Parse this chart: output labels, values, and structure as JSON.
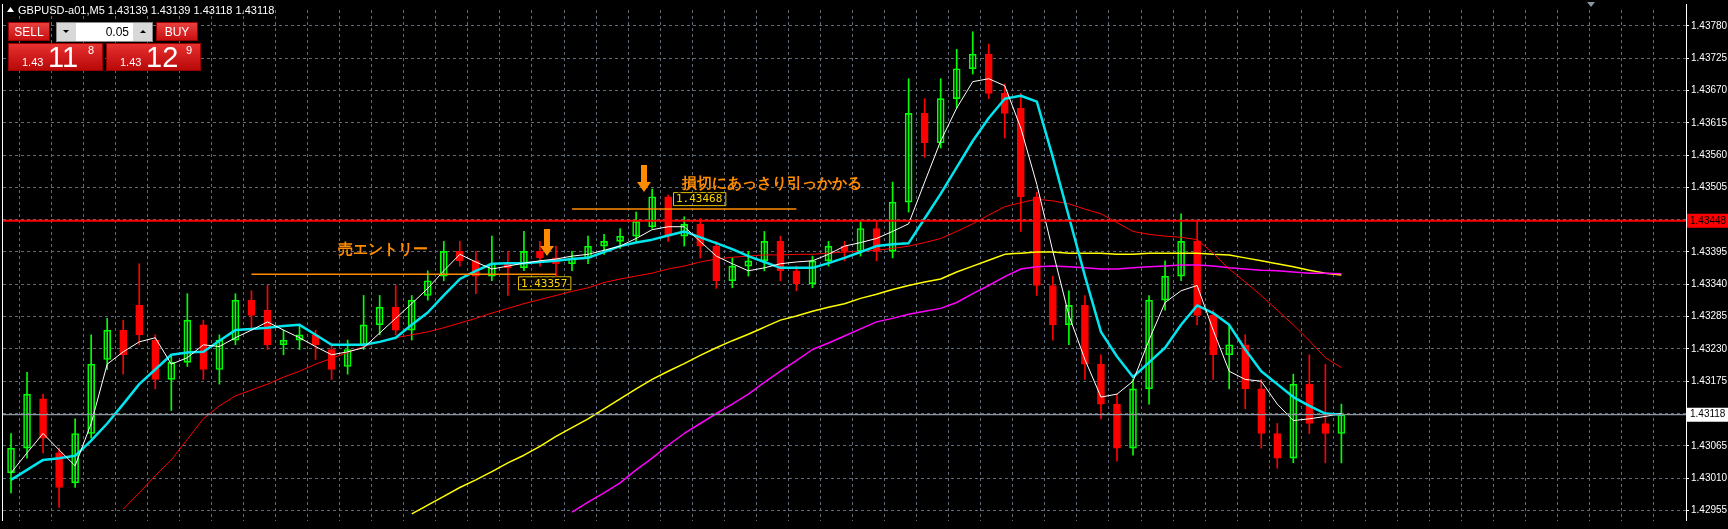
{
  "chart_data": {
    "type": "candlestick",
    "title": "GBPUSD-a01,M5 1.43139 1.43139 1.43118 1.43118",
    "categories": [
      null,
      null,
      null,
      null,
      null,
      null,
      null,
      null,
      null,
      null,
      null,
      null,
      null,
      null,
      null,
      null,
      null,
      null,
      null,
      null,
      null,
      null,
      null,
      null,
      null,
      null,
      null,
      null,
      null,
      null,
      null,
      null,
      null,
      null,
      null,
      null,
      null,
      null,
      null,
      null,
      null,
      null,
      null,
      null,
      null,
      null,
      null,
      null,
      null,
      null,
      null,
      null,
      null,
      null,
      null,
      null,
      null,
      null,
      null,
      null,
      null,
      null,
      null,
      null,
      null,
      null,
      null,
      null,
      null,
      null,
      null,
      null,
      null,
      null,
      null,
      null,
      null,
      null,
      null,
      null,
      null,
      null,
      null,
      null,
      null,
      null,
      null,
      null,
      null,
      null,
      null,
      null,
      null,
      null,
      null,
      null,
      null,
      null,
      null,
      null,
      null,
      null,
      null,
      null,
      null
    ],
    "ohlc": [
      [
        1.43019,
        1.43086,
        1.42985,
        1.43061
      ],
      [
        1.43061,
        1.4319,
        1.43044,
        1.43153
      ],
      [
        1.43145,
        1.43153,
        1.43053,
        1.43078
      ],
      [
        1.43053,
        1.43061,
        1.4296,
        1.42994
      ],
      [
        1.43002,
        1.43111,
        1.42994,
        1.43086
      ],
      [
        1.43086,
        1.43254,
        1.43078,
        1.43204
      ],
      [
        1.43212,
        1.43282,
        1.43195,
        1.43262
      ],
      [
        1.43262,
        1.43279,
        1.43187,
        1.4322
      ],
      [
        1.43304,
        1.43375,
        1.43237,
        1.43254
      ],
      [
        1.43245,
        1.43254,
        1.43162,
        1.43178
      ],
      [
        1.43178,
        1.4322,
        1.43125,
        1.43207
      ],
      [
        1.43207,
        1.43324,
        1.432,
        1.43279
      ],
      [
        1.43271,
        1.43279,
        1.43178,
        1.43195
      ],
      [
        1.43195,
        1.43254,
        1.4317,
        1.43245
      ],
      [
        1.43245,
        1.43324,
        1.43237,
        1.43313
      ],
      [
        1.43313,
        1.43329,
        1.43262,
        1.43287
      ],
      [
        1.43296,
        1.43338,
        1.43229,
        1.43237
      ],
      [
        1.43237,
        1.43262,
        1.4322,
        1.43245
      ],
      [
        1.43245,
        1.43271,
        1.43229,
        1.43254
      ],
      [
        1.43254,
        1.43262,
        1.43212,
        1.43237
      ],
      [
        1.43229,
        1.43237,
        1.43178,
        1.43195
      ],
      [
        1.432,
        1.43245,
        1.43187,
        1.43229
      ],
      [
        1.43237,
        1.43321,
        1.43229,
        1.43271
      ],
      [
        1.43271,
        1.43321,
        1.43254,
        1.43301
      ],
      [
        1.43301,
        1.43338,
        1.43254,
        1.43262
      ],
      [
        1.43262,
        1.43321,
        1.43245,
        1.43313
      ],
      [
        1.43321,
        1.43363,
        1.43313,
        1.43346
      ],
      [
        1.43354,
        1.43413,
        1.43346,
        1.43396
      ],
      [
        1.43396,
        1.43413,
        1.43371,
        1.4338
      ],
      [
        1.4338,
        1.43396,
        1.43324,
        1.43354
      ],
      [
        1.43354,
        1.43422,
        1.43346,
        1.43375
      ],
      [
        1.43375,
        1.43396,
        1.43321,
        1.43368
      ],
      [
        1.43368,
        1.4343,
        1.43363,
        1.43396
      ],
      [
        1.43396,
        1.43413,
        1.43371,
        1.43385
      ],
      [
        1.43385,
        1.43405,
        1.43354,
        1.43375
      ],
      [
        1.43375,
        1.43396,
        1.43363,
        1.43385
      ],
      [
        1.43385,
        1.43422,
        1.43375,
        1.43405
      ],
      [
        1.43405,
        1.43425,
        1.43391,
        1.43413
      ],
      [
        1.43413,
        1.43435,
        1.43401,
        1.43422
      ],
      [
        1.43422,
        1.43463,
        1.43413,
        1.43447
      ],
      [
        1.43438,
        1.43502,
        1.43435,
        1.43489
      ],
      [
        1.43489,
        1.43492,
        1.43413,
        1.43422
      ],
      [
        1.43422,
        1.43455,
        1.43405,
        1.43442
      ],
      [
        1.43442,
        1.43452,
        1.43385,
        1.43405
      ],
      [
        1.43405,
        1.43413,
        1.43333,
        1.43346
      ],
      [
        1.43346,
        1.43385,
        1.43334,
        1.43371
      ],
      [
        1.43371,
        1.43396,
        1.43354,
        1.4338
      ],
      [
        1.4338,
        1.4343,
        1.43363,
        1.43413
      ],
      [
        1.43413,
        1.43422,
        1.43346,
        1.43363
      ],
      [
        1.43363,
        1.43371,
        1.43329,
        1.43341
      ],
      [
        1.43341,
        1.43388,
        1.43334,
        1.4338
      ],
      [
        1.4338,
        1.43413,
        1.43371,
        1.43405
      ],
      [
        1.43405,
        1.43413,
        1.4338,
        1.43396
      ],
      [
        1.43396,
        1.43447,
        1.43388,
        1.43435
      ],
      [
        1.43435,
        1.43447,
        1.4338,
        1.43396
      ],
      [
        1.43396,
        1.43514,
        1.43385,
        1.4348
      ],
      [
        1.4348,
        1.4369,
        1.43463,
        1.43631
      ],
      [
        1.43631,
        1.43656,
        1.43556,
        1.43581
      ],
      [
        1.43581,
        1.4369,
        1.43572,
        1.43656
      ],
      [
        1.43656,
        1.4374,
        1.4364,
        1.43707
      ],
      [
        1.43707,
        1.4377,
        1.43698,
        1.43732
      ],
      [
        1.43732,
        1.43749,
        1.43656,
        1.43665
      ],
      [
        1.43665,
        1.43681,
        1.43589,
        1.43631
      ],
      [
        1.4364,
        1.43665,
        1.4343,
        1.43489
      ],
      [
        1.43489,
        1.43497,
        1.43321,
        1.43338
      ],
      [
        1.43338,
        1.43354,
        1.43245,
        1.43271
      ],
      [
        1.43271,
        1.43329,
        1.43237,
        1.43304
      ],
      [
        1.43304,
        1.43321,
        1.43178,
        1.43204
      ],
      [
        1.43204,
        1.4322,
        1.43111,
        1.43136
      ],
      [
        1.43136,
        1.43153,
        1.43039,
        1.43061
      ],
      [
        1.43061,
        1.43178,
        1.43049,
        1.43162
      ],
      [
        1.43162,
        1.43321,
        1.43136,
        1.43313
      ],
      [
        1.43313,
        1.4338,
        1.43296,
        1.43354
      ],
      [
        1.43354,
        1.4346,
        1.43346,
        1.43413
      ],
      [
        1.43413,
        1.43447,
        1.43271,
        1.43287
      ],
      [
        1.43287,
        1.43296,
        1.43178,
        1.4322
      ],
      [
        1.4322,
        1.43271,
        1.43162,
        1.43237
      ],
      [
        1.43237,
        1.43254,
        1.43128,
        1.43162
      ],
      [
        1.43162,
        1.43178,
        1.43061,
        1.43086
      ],
      [
        1.43086,
        1.43103,
        1.43027,
        1.43044
      ],
      [
        1.43044,
        1.43187,
        1.43036,
        1.4317
      ],
      [
        1.4317,
        1.4322,
        1.43086,
        1.43103
      ],
      [
        1.43103,
        1.43204,
        1.43036,
        1.43086
      ],
      [
        1.43086,
        1.43136,
        1.43036,
        1.43118
      ],
      null,
      null,
      null,
      null,
      null,
      null,
      null,
      null,
      null,
      null,
      null,
      null,
      null,
      null,
      null,
      null,
      null,
      null,
      null,
      null,
      null
    ],
    "colors": [
      "#00ff00",
      "#00ff00",
      "#ff0000",
      "#ff0000",
      "#00ff00",
      "#00ff00",
      "#00ff00",
      "#ff0000",
      "#ff0000",
      "#ff0000",
      "#00ff00",
      "#00ff00",
      "#ff0000",
      "#00ff00",
      "#00ff00",
      "#ff0000",
      "#ff0000",
      "#00ff00",
      "#00ff00",
      "#ff0000",
      "#ff0000",
      "#00ff00",
      "#00ff00",
      "#00ff00",
      "#ff0000",
      "#00ff00",
      "#00ff00",
      "#00ff00",
      "#ff0000",
      "#ff0000",
      "#00ff00",
      "#ff0000",
      "#00ff00",
      "#ff0000",
      "#ff0000",
      "#00ff00",
      "#00ff00",
      "#00ff00",
      "#00ff00",
      "#00ff00",
      "#00ff00",
      "#ff0000",
      "#00ff00",
      "#ff0000",
      "#ff0000",
      "#00ff00",
      "#00ff00",
      "#00ff00",
      "#ff0000",
      "#ff0000",
      "#00ff00",
      "#00ff00",
      "#ff0000",
      "#00ff00",
      "#ff0000",
      "#00ff00",
      "#00ff00",
      "#ff0000",
      "#00ff00",
      "#00ff00",
      "#00ff00",
      "#ff0000",
      "#ff0000",
      "#ff0000",
      "#ff0000",
      "#ff0000",
      "#00ff00",
      "#ff0000",
      "#ff0000",
      "#ff0000",
      "#00ff00",
      "#00ff00",
      "#00ff00",
      "#00ff00",
      "#ff0000",
      "#ff0000",
      "#00ff00",
      "#ff0000",
      "#ff0000",
      "#ff0000",
      "#00ff00",
      "#ff0000",
      "#ff0000",
      "#00ff00",
      null,
      null,
      null,
      null,
      null,
      null,
      null,
      null,
      null,
      null,
      null,
      null,
      null,
      null,
      null,
      null,
      null,
      null,
      null,
      null,
      null
    ],
    "series": [
      {
        "type": "line",
        "color": "#ffff00",
        "values": [
          null,
          null,
          null,
          null,
          null,
          null,
          null,
          null,
          null,
          null,
          null,
          null,
          null,
          null,
          null,
          null,
          null,
          null,
          null,
          null,
          null,
          null,
          null,
          null,
          null,
          1.42949,
          1.42964,
          1.42979,
          1.42994,
          1.43007,
          1.43021,
          1.43036,
          1.43049,
          1.43064,
          1.43081,
          1.43096,
          1.43111,
          1.43128,
          1.43145,
          1.43162,
          1.43178,
          1.43192,
          1.43205,
          1.43219,
          1.43232,
          1.43244,
          1.43255,
          1.43267,
          1.43279,
          1.43286,
          1.43294,
          1.43301,
          1.43307,
          1.43316,
          1.43323,
          1.43331,
          1.43338,
          1.43344,
          1.43349,
          1.43361,
          1.43371,
          1.43381,
          1.43391,
          1.43393,
          1.43395,
          1.43395,
          1.43393,
          1.43393,
          1.43393,
          1.43391,
          1.43391,
          1.43393,
          1.43393,
          1.43393,
          1.43393,
          1.43391,
          1.4339,
          1.43385,
          1.4338,
          1.43375,
          1.4337,
          1.43364,
          1.43359,
          1.43356,
          null,
          null,
          null,
          null,
          null,
          null,
          null,
          null,
          null,
          null,
          null,
          null,
          null,
          null,
          null,
          null,
          null,
          null,
          null,
          null,
          null
        ]
      },
      {
        "type": "line",
        "color": "#ff00ff",
        "values": [
          null,
          null,
          null,
          null,
          null,
          null,
          null,
          null,
          null,
          null,
          null,
          null,
          null,
          null,
          null,
          null,
          null,
          null,
          null,
          null,
          null,
          null,
          null,
          null,
          null,
          null,
          null,
          null,
          null,
          null,
          null,
          null,
          null,
          null,
          null,
          1.42952,
          1.42969,
          1.42985,
          1.43002,
          1.43024,
          1.43044,
          1.43066,
          1.43086,
          1.43103,
          1.4312,
          1.43136,
          1.43153,
          1.43173,
          1.43192,
          1.4321,
          1.43229,
          1.4324,
          1.43252,
          1.43264,
          1.43276,
          1.43282,
          1.43289,
          1.43294,
          1.43299,
          1.43309,
          1.43324,
          1.43338,
          1.43353,
          1.43366,
          1.4337,
          1.43371,
          1.4337,
          1.43368,
          1.43366,
          1.43366,
          1.43368,
          1.4337,
          1.43371,
          1.43373,
          1.43373,
          1.43371,
          1.43368,
          1.43366,
          1.43364,
          1.43363,
          1.43361,
          1.43359,
          1.43359,
          1.43358,
          null,
          null,
          null,
          null,
          null,
          null,
          null,
          null,
          null,
          null,
          null,
          null,
          null,
          null,
          null,
          null,
          null,
          null,
          null,
          null,
          null
        ]
      },
      {
        "type": "line",
        "color": "#ff0000",
        "values": [
          null,
          null,
          null,
          null,
          null,
          null,
          null,
          1.42957,
          1.42985,
          1.43014,
          1.43041,
          1.43076,
          1.43111,
          1.43133,
          1.4315,
          1.4316,
          1.4317,
          1.43182,
          1.43192,
          1.43204,
          1.43214,
          1.43224,
          1.43234,
          1.43242,
          1.43249,
          1.43254,
          1.43259,
          1.43266,
          1.43274,
          1.43282,
          1.43291,
          1.43299,
          1.43307,
          1.43314,
          1.43321,
          1.43328,
          1.43334,
          1.43343,
          1.43349,
          1.43354,
          1.43359,
          1.43366,
          1.43371,
          1.43378,
          1.43383,
          1.43386,
          1.43388,
          1.4339,
          1.4339,
          1.43391,
          1.43391,
          1.43393,
          1.43395,
          1.43396,
          1.43398,
          1.43401,
          1.43405,
          1.43411,
          1.43418,
          1.4343,
          1.43443,
          1.43458,
          1.43472,
          1.43479,
          1.43485,
          1.43482,
          1.43477,
          1.43468,
          1.4346,
          1.43445,
          1.4343,
          1.43425,
          1.43422,
          1.4342,
          1.43416,
          1.43393,
          1.43366,
          1.43344,
          1.43321,
          1.43296,
          1.43271,
          1.43244,
          1.43215,
          1.43198,
          null,
          null,
          null,
          null,
          null,
          null,
          null,
          null,
          null,
          null,
          null,
          null,
          null,
          null,
          null,
          null,
          null,
          null,
          null,
          null,
          null
        ]
      },
      {
        "type": "line",
        "color": "#00e5ee",
        "values": [
          1.43007,
          1.43024,
          1.43041,
          1.43044,
          1.43048,
          1.43074,
          1.43103,
          1.43136,
          1.4317,
          1.43195,
          1.4322,
          1.43224,
          1.43225,
          1.43244,
          1.43262,
          1.43264,
          1.43266,
          1.43269,
          1.43271,
          1.43254,
          1.43237,
          1.43237,
          1.43237,
          1.43242,
          1.43249,
          1.43271,
          1.43292,
          1.43321,
          1.43349,
          1.43363,
          1.43375,
          1.43376,
          1.43376,
          1.43378,
          1.4338,
          1.43383,
          1.43385,
          1.43395,
          1.43405,
          1.43411,
          1.43416,
          1.43423,
          1.4343,
          1.4342,
          1.4341,
          1.434,
          1.43388,
          1.43378,
          1.43368,
          1.43368,
          1.43368,
          1.43376,
          1.43385,
          1.43395,
          1.43405,
          1.43408,
          1.4341,
          1.43452,
          1.43494,
          1.43539,
          1.43584,
          1.43623,
          1.43656,
          1.43661,
          1.43651,
          1.43556,
          1.43455,
          1.43354,
          1.43259,
          1.43217,
          1.43182,
          1.43207,
          1.43232,
          1.43271,
          1.43304,
          1.43291,
          1.43271,
          1.43229,
          1.43192,
          1.4317,
          1.43148,
          1.43133,
          1.4312,
          1.43118,
          null,
          null,
          null,
          null,
          null,
          null,
          null,
          null,
          null,
          null,
          null,
          null,
          null,
          null,
          null,
          null,
          null,
          null,
          null,
          null,
          null
        ]
      },
      {
        "type": "line",
        "color": "#ffffff",
        "values": [
          1.43019,
          1.43053,
          1.43086,
          1.43058,
          1.43031,
          1.43103,
          1.43204,
          1.43225,
          1.43242,
          1.43249,
          1.43204,
          1.43215,
          1.43237,
          1.43234,
          1.43249,
          1.43262,
          1.43276,
          1.43262,
          1.43249,
          1.43234,
          1.4322,
          1.43225,
          1.43232,
          1.43257,
          1.43282,
          1.43307,
          1.43333,
          1.43363,
          1.43391,
          1.43378,
          1.43366,
          1.43371,
          1.43376,
          1.4338,
          1.43383,
          1.43388,
          1.43391,
          1.43398,
          1.43405,
          1.43418,
          1.43433,
          1.43438,
          1.43438,
          1.43413,
          1.43388,
          1.43375,
          1.43363,
          1.43368,
          1.43375,
          1.43378,
          1.4338,
          1.43391,
          1.43405,
          1.43411,
          1.43418,
          1.4343,
          1.43443,
          1.43514,
          1.43584,
          1.4364,
          1.43685,
          1.4369,
          1.43678,
          1.43606,
          1.4351,
          1.43396,
          1.43287,
          1.43212,
          1.43148,
          1.43153,
          1.43175,
          1.43245,
          1.43309,
          1.43329,
          1.43338,
          1.43262,
          1.43192,
          1.43178,
          1.43175,
          1.43136,
          1.43108,
          1.43111,
          1.43115,
          1.4312,
          null,
          null,
          null,
          null,
          null,
          null,
          null,
          null,
          null,
          null,
          null,
          null,
          null,
          null,
          null,
          null,
          null,
          null,
          null,
          null,
          null
        ]
      },
      {
        "type": "line",
        "color": "#ff8c00",
        "values": [
          null,
          null,
          null,
          null,
          null,
          null,
          null,
          null,
          null,
          null,
          null,
          null,
          null,
          null,
          null,
          1.43357,
          1.43357,
          1.43357,
          1.43357,
          1.43357,
          1.43357,
          1.43357,
          1.43357,
          1.43357,
          1.43357,
          1.43357,
          1.43357,
          1.43357,
          1.43357,
          1.43357,
          1.43357,
          1.43357,
          1.43357,
          1.43357,
          1.43357,
          null,
          null,
          null,
          null,
          null,
          null,
          null,
          null,
          null,
          null,
          null,
          null,
          null,
          null,
          null,
          null,
          null,
          null,
          null,
          null,
          null,
          null,
          null,
          null,
          null,
          null,
          null,
          null,
          null,
          null,
          null,
          null,
          null,
          null,
          null,
          null,
          null,
          null,
          null,
          null,
          null,
          null,
          null,
          null,
          null,
          null,
          null,
          null,
          null,
          null,
          null,
          null,
          null,
          null,
          null,
          null,
          null,
          null,
          null,
          null,
          null,
          null,
          null,
          null,
          null,
          null,
          null,
          null,
          null,
          null
        ]
      },
      {
        "type": "line",
        "color": "#ff8c00",
        "values": [
          null,
          null,
          null,
          null,
          null,
          null,
          null,
          null,
          null,
          null,
          null,
          null,
          null,
          null,
          null,
          null,
          null,
          null,
          null,
          null,
          null,
          null,
          null,
          null,
          null,
          null,
          null,
          null,
          null,
          null,
          null,
          null,
          null,
          null,
          null,
          1.43468,
          1.43468,
          1.43468,
          1.43468,
          1.43468,
          1.43468,
          1.43468,
          1.43468,
          1.43468,
          1.43468,
          1.43468,
          1.43468,
          1.43468,
          1.43468,
          1.43468,
          null,
          null,
          null,
          null,
          null,
          null,
          null,
          null,
          null,
          null,
          null,
          null,
          null,
          null,
          null,
          null,
          null,
          null,
          null,
          null,
          null,
          null,
          null,
          null,
          null,
          null,
          null,
          null,
          null,
          null,
          null,
          null,
          null,
          null,
          null,
          null,
          null,
          null,
          null,
          null,
          null,
          null,
          null,
          null,
          null,
          null,
          null,
          null,
          null,
          null,
          null,
          null,
          null,
          null,
          null
        ]
      }
    ],
    "ylim": [
      1.42937,
      1.43807
    ],
    "yticks": [
      {
        "value": 1.42955,
        "label": "1.42955"
      },
      {
        "value": 1.4301,
        "label": "1.43010"
      },
      {
        "value": 1.43065,
        "label": "1.43065"
      },
      {
        "value": 1.4312,
        "label": null
      },
      {
        "value": 1.43175,
        "label": "1.43175"
      },
      {
        "value": 1.4323,
        "label": "1.43230"
      },
      {
        "value": 1.43285,
        "label": "1.43285"
      },
      {
        "value": 1.4334,
        "label": "1.43340"
      },
      {
        "value": 1.43395,
        "label": "1.43395"
      },
      {
        "value": 1.4345,
        "label": null
      },
      {
        "value": 1.43505,
        "label": "1.43505"
      },
      {
        "value": 1.4356,
        "label": "1.43560"
      },
      {
        "value": 1.43615,
        "label": "1.43615"
      },
      {
        "value": 1.4367,
        "label": "1.43670"
      },
      {
        "value": 1.43725,
        "label": "1.43725"
      },
      {
        "value": 1.4378,
        "label": "1.43780"
      }
    ],
    "ref_lines": [
      {
        "axis": "y",
        "value": 1.43448,
        "label": "1.43448",
        "color": "#ff0000"
      },
      {
        "axis": "y",
        "value": 1.43118,
        "label": "1.43118",
        "color": "#8c96a0"
      }
    ],
    "annotations": [
      "売エントリー",
      "損切にあっさり引っかかる",
      {
        "text": "1.43357",
        "y": 1.43357
      },
      {
        "text": "1.43468",
        "y": 1.43468
      },
      "SELL",
      "0.05",
      "BUY",
      "1.43",
      "11",
      "8",
      "1.43",
      "12",
      "9"
    ],
    "grid": true,
    "legend": false,
    "tick_labels": "y"
  }
}
